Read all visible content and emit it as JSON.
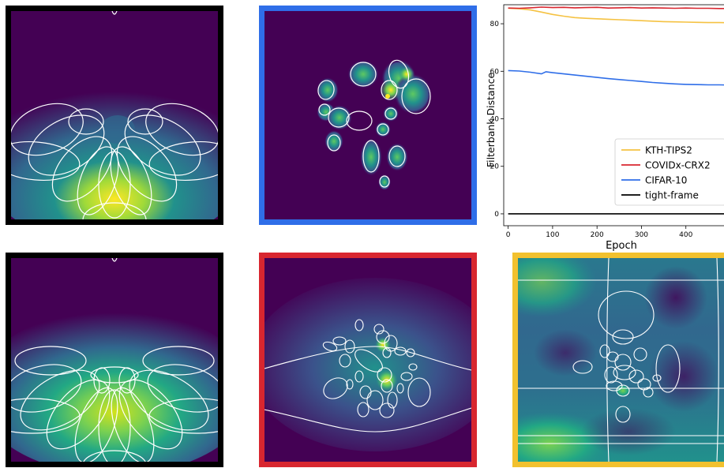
{
  "colors": {
    "viridis_dark": "#440154",
    "viridis_blue": "#31688e",
    "viridis_teal": "#21918c",
    "viridis_green": "#5ec962",
    "viridis_yellow": "#fde725",
    "frame_black": "#000000",
    "frame_blue": "#2f6ee8",
    "frame_red": "#d8262f",
    "frame_yellow": "#f2c12e",
    "contour": "#ffffff"
  },
  "panels": [
    {
      "id": "top-left",
      "frame": "black"
    },
    {
      "id": "top-middle",
      "frame": "blue"
    },
    {
      "id": "bottom-left",
      "frame": "black"
    },
    {
      "id": "bottom-middle",
      "frame": "red"
    },
    {
      "id": "bottom-right",
      "frame": "yellow"
    }
  ],
  "chart_data": {
    "type": "line",
    "title": "",
    "xlabel": "Epoch",
    "ylabel": "Filterbank Distance",
    "xlim": [
      -10,
      500
    ],
    "ylim": [
      -5,
      88
    ],
    "xticks": [
      0,
      100,
      200,
      300,
      400,
      500
    ],
    "yticks": [
      0,
      20,
      40,
      60,
      80
    ],
    "grid": false,
    "legend_position": "lower right",
    "series": [
      {
        "name": "KTH-TIPS2",
        "color": "#f5c242",
        "x": [
          0,
          25,
          50,
          75,
          100,
          125,
          150,
          175,
          200,
          225,
          250,
          275,
          300,
          325,
          350,
          375,
          400,
          425,
          450,
          475,
          500
        ],
        "y": [
          86.5,
          86.3,
          85.8,
          84.9,
          83.9,
          83.2,
          82.6,
          82.3,
          82.1,
          81.9,
          81.7,
          81.5,
          81.3,
          81.1,
          80.9,
          80.8,
          80.7,
          80.6,
          80.5,
          80.5,
          80.4
        ]
      },
      {
        "name": "COVIDx-CRX2",
        "color": "#d8262f",
        "x": [
          0,
          25,
          50,
          75,
          100,
          125,
          150,
          175,
          200,
          225,
          250,
          275,
          300,
          325,
          350,
          375,
          400,
          425,
          450,
          475,
          500
        ],
        "y": [
          86.6,
          86.5,
          86.7,
          87.0,
          86.8,
          86.9,
          86.7,
          86.8,
          86.9,
          86.6,
          86.7,
          86.8,
          86.6,
          86.7,
          86.6,
          86.5,
          86.6,
          86.5,
          86.5,
          86.4,
          86.4
        ]
      },
      {
        "name": "CIFAR-10",
        "color": "#2f6ee8",
        "x": [
          0,
          25,
          50,
          75,
          85,
          100,
          125,
          150,
          175,
          200,
          225,
          250,
          275,
          300,
          325,
          350,
          375,
          400,
          425,
          450,
          475,
          500
        ],
        "y": [
          60.3,
          60.1,
          59.6,
          58.9,
          59.8,
          59.4,
          58.9,
          58.4,
          57.9,
          57.4,
          56.9,
          56.5,
          56.1,
          55.7,
          55.3,
          55.0,
          54.7,
          54.5,
          54.4,
          54.3,
          54.3,
          54.2
        ]
      },
      {
        "name": "tight-frame",
        "color": "#000000",
        "x": [
          0,
          500
        ],
        "y": [
          0,
          0
        ]
      }
    ]
  }
}
